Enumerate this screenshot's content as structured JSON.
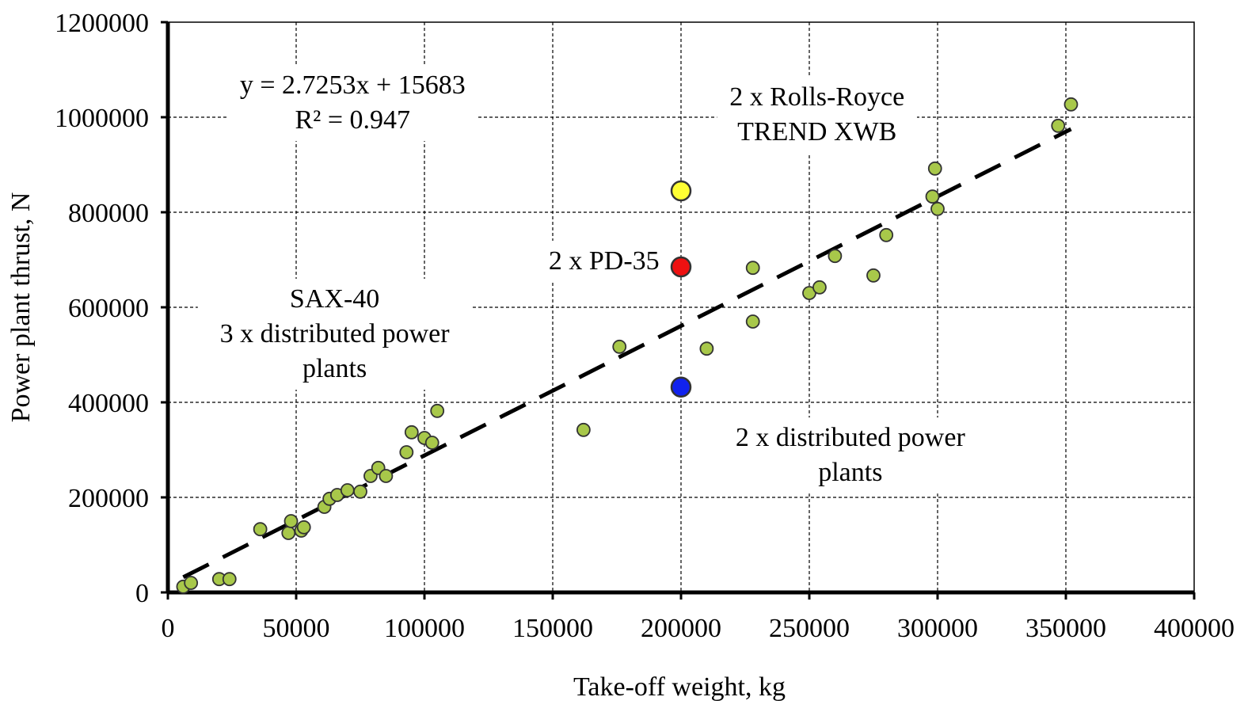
{
  "chart_data": {
    "type": "scatter",
    "title": "",
    "xlabel": "Take-off weight, kg",
    "ylabel": "Power plant thrust, N",
    "xlim": [
      0,
      400000
    ],
    "ylim": [
      0,
      1200000
    ],
    "x_ticks": [
      0,
      50000,
      100000,
      150000,
      200000,
      250000,
      300000,
      350000,
      400000
    ],
    "y_ticks": [
      0,
      200000,
      400000,
      600000,
      800000,
      1000000,
      1200000
    ],
    "x_tick_labels": [
      "0",
      "50000",
      "100000",
      "150000",
      "200000",
      "250000",
      "300000",
      "350000",
      "400000"
    ],
    "y_tick_labels": [
      "0",
      "200000",
      "400000",
      "600000",
      "800000",
      "1000000",
      "1200000"
    ],
    "grid": true,
    "series": [
      {
        "color": "#a8c84a",
        "points": [
          [
            6000,
            12000
          ],
          [
            9000,
            20000
          ],
          [
            20000,
            28000
          ],
          [
            24000,
            28000
          ],
          [
            36000,
            133000
          ],
          [
            47000,
            125000
          ],
          [
            48000,
            150000
          ],
          [
            52000,
            130000
          ],
          [
            53000,
            137000
          ],
          [
            61000,
            180000
          ],
          [
            63000,
            197000
          ],
          [
            66000,
            205000
          ],
          [
            70000,
            215000
          ],
          [
            75000,
            212000
          ],
          [
            79000,
            245000
          ],
          [
            82000,
            262000
          ],
          [
            85000,
            245000
          ],
          [
            93000,
            295000
          ],
          [
            95000,
            337000
          ],
          [
            100000,
            325000
          ],
          [
            103000,
            315000
          ],
          [
            105000,
            382000
          ],
          [
            162000,
            342000
          ],
          [
            176000,
            517000
          ],
          [
            210000,
            513000
          ],
          [
            228000,
            683000
          ],
          [
            228000,
            570000
          ],
          [
            250000,
            630000
          ],
          [
            254000,
            642000
          ],
          [
            260000,
            708000
          ],
          [
            275000,
            667000
          ],
          [
            280000,
            752000
          ],
          [
            298000,
            833000
          ],
          [
            299000,
            892000
          ],
          [
            300000,
            807000
          ],
          [
            347000,
            982000
          ],
          [
            352000,
            1027000
          ]
        ]
      },
      {
        "color": "#ffff33",
        "points": [
          [
            200000,
            845000
          ]
        ]
      },
      {
        "color": "#ee1111",
        "points": [
          [
            200000,
            685000
          ]
        ]
      },
      {
        "color": "#1122ee",
        "points": [
          [
            200000,
            432000
          ]
        ]
      }
    ],
    "trendline": {
      "slope": 2.7253,
      "intercept": 15683,
      "x_range": [
        6000,
        352000
      ]
    },
    "annotations": [
      {
        "lines": [
          "y = 2.7253x + 15683",
          "R² = 0.947"
        ],
        "at": [
          72000,
          1050000
        ]
      },
      {
        "lines": [
          "2 x Rolls-Royce",
          "TREND XWB"
        ],
        "at": [
          253000,
          1025000
        ]
      },
      {
        "lines": [
          "2 x PD-35"
        ],
        "at": [
          170000,
          680000
        ]
      },
      {
        "lines": [
          "SAX-40",
          "3 x distributed power",
          "plants"
        ],
        "at": [
          65000,
          600000
        ]
      },
      {
        "lines": [
          "2 x distributed power",
          "plants"
        ],
        "at": [
          266000,
          308000
        ]
      }
    ]
  }
}
